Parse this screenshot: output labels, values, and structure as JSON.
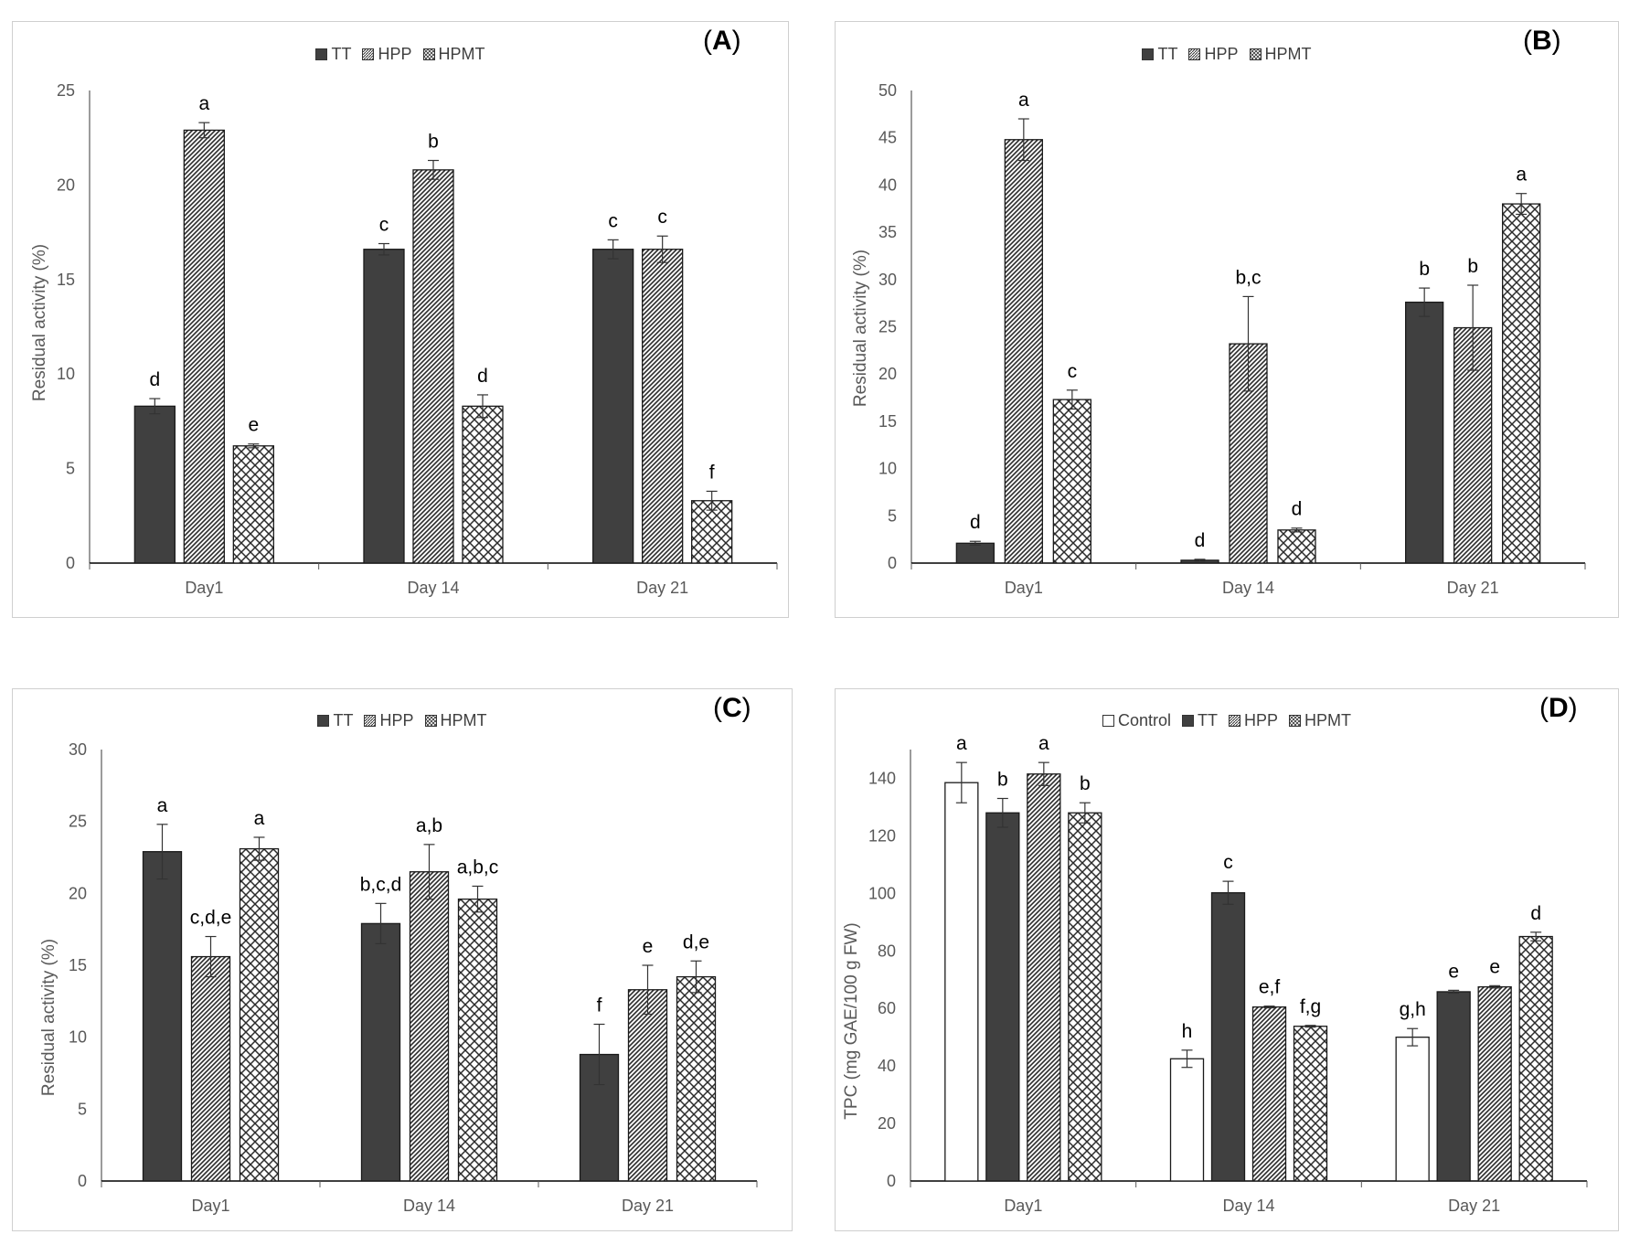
{
  "colors": {
    "tt": "#404040",
    "pattern": "#2b2b2b",
    "axis": "#595959",
    "grid": "#d9d9d9",
    "text": "#595959"
  },
  "panels": [
    {
      "label": "A",
      "ylabel": "Residual activity (%)",
      "legend": [
        "TT",
        "HPP",
        "HPMT"
      ],
      "chart_id": "A"
    },
    {
      "label": "B",
      "ylabel": "Residual activity (%)",
      "legend": [
        "TT",
        "HPP",
        "HPMT"
      ],
      "chart_id": "B"
    },
    {
      "label": "C",
      "ylabel": "Residual activity (%)",
      "legend": [
        "TT",
        "HPP",
        "HPMT"
      ],
      "chart_id": "C"
    },
    {
      "label": "D",
      "ylabel": "TPC (mg GAE/100 g FW)",
      "legend": [
        "Control",
        "TT",
        "HPP",
        "HPMT"
      ],
      "chart_id": "D"
    }
  ],
  "chart_data": [
    {
      "id": "A",
      "type": "bar",
      "title": "(A)",
      "categories": [
        "Day1",
        "Day 14",
        "Day 21"
      ],
      "ylabel": "Residual activity (%)",
      "ylim": [
        0,
        25
      ],
      "yticks": [
        0,
        5,
        10,
        15,
        20,
        25
      ],
      "series": [
        {
          "name": "TT",
          "values": [
            8.3,
            16.6,
            16.6
          ],
          "errors": [
            0.4,
            0.3,
            0.5
          ],
          "letters": [
            "d",
            "c",
            "c"
          ]
        },
        {
          "name": "HPP",
          "values": [
            22.9,
            20.8,
            16.6
          ],
          "errors": [
            0.4,
            0.5,
            0.7
          ],
          "letters": [
            "a",
            "b",
            "c"
          ]
        },
        {
          "name": "HPMT",
          "values": [
            6.2,
            8.3,
            3.3
          ],
          "errors": [
            0.1,
            0.6,
            0.5
          ],
          "letters": [
            "e",
            "d",
            "f"
          ]
        }
      ]
    },
    {
      "id": "B",
      "type": "bar",
      "title": "(B)",
      "categories": [
        "Day1",
        "Day 14",
        "Day 21"
      ],
      "ylabel": "Residual activity (%)",
      "ylim": [
        0,
        50
      ],
      "yticks": [
        0,
        5,
        10,
        15,
        20,
        25,
        30,
        35,
        40,
        45,
        50
      ],
      "series": [
        {
          "name": "TT",
          "values": [
            2.1,
            0.3,
            27.6
          ],
          "errors": [
            0.2,
            0.1,
            1.5
          ],
          "letters": [
            "d",
            "d",
            "b"
          ]
        },
        {
          "name": "HPP",
          "values": [
            44.8,
            23.2,
            24.9
          ],
          "errors": [
            2.2,
            5.0,
            4.5
          ],
          "letters": [
            "a",
            "b,c",
            "b"
          ]
        },
        {
          "name": "HPMT",
          "values": [
            17.3,
            3.5,
            38.0
          ],
          "errors": [
            1.0,
            0.2,
            1.1
          ],
          "letters": [
            "c",
            "d",
            "a"
          ]
        }
      ]
    },
    {
      "id": "C",
      "type": "bar",
      "title": "(C)",
      "categories": [
        "Day1",
        "Day 14",
        "Day 21"
      ],
      "ylabel": "Residual activity (%)",
      "ylim": [
        0,
        30
      ],
      "yticks": [
        0,
        5,
        10,
        15,
        20,
        25,
        30
      ],
      "series": [
        {
          "name": "TT",
          "values": [
            22.9,
            17.9,
            8.8
          ],
          "errors": [
            1.9,
            1.4,
            2.1
          ],
          "letters": [
            "a",
            "b,c,d",
            "f"
          ]
        },
        {
          "name": "HPP",
          "values": [
            15.6,
            21.5,
            13.3
          ],
          "errors": [
            1.4,
            1.9,
            1.7
          ],
          "letters": [
            "c,d,e",
            "a,b",
            "e"
          ]
        },
        {
          "name": "HPMT",
          "values": [
            23.1,
            19.6,
            14.2
          ],
          "errors": [
            0.8,
            0.9,
            1.1
          ],
          "letters": [
            "a",
            "a,b,c",
            "d,e"
          ]
        }
      ]
    },
    {
      "id": "D",
      "type": "bar",
      "title": "(D)",
      "categories": [
        "Day1",
        "Day 14",
        "Day 21"
      ],
      "ylabel": "TPC (mg GAE/100 g FW)",
      "ylim": [
        0,
        150
      ],
      "yticks": [
        0,
        20,
        40,
        60,
        80,
        100,
        120,
        140
      ],
      "series": [
        {
          "name": "Control",
          "values": [
            138.5,
            42.5,
            50.0
          ],
          "errors": [
            7.0,
            3.0,
            3.0
          ],
          "letters": [
            "a",
            "h",
            "g,h"
          ]
        },
        {
          "name": "TT",
          "values": [
            128.0,
            100.2,
            65.8
          ],
          "errors": [
            5.0,
            4.0,
            0.5
          ],
          "letters": [
            "b",
            "c",
            "e"
          ]
        },
        {
          "name": "HPP",
          "values": [
            141.5,
            60.5,
            67.5
          ],
          "errors": [
            4.0,
            0.3,
            0.4
          ],
          "letters": [
            "a",
            "e,f",
            "e"
          ]
        },
        {
          "name": "HPMT",
          "values": [
            128.0,
            53.8,
            85.0
          ],
          "errors": [
            3.5,
            0.3,
            1.5
          ],
          "letters": [
            "b",
            "f,g",
            "d"
          ]
        }
      ]
    }
  ]
}
